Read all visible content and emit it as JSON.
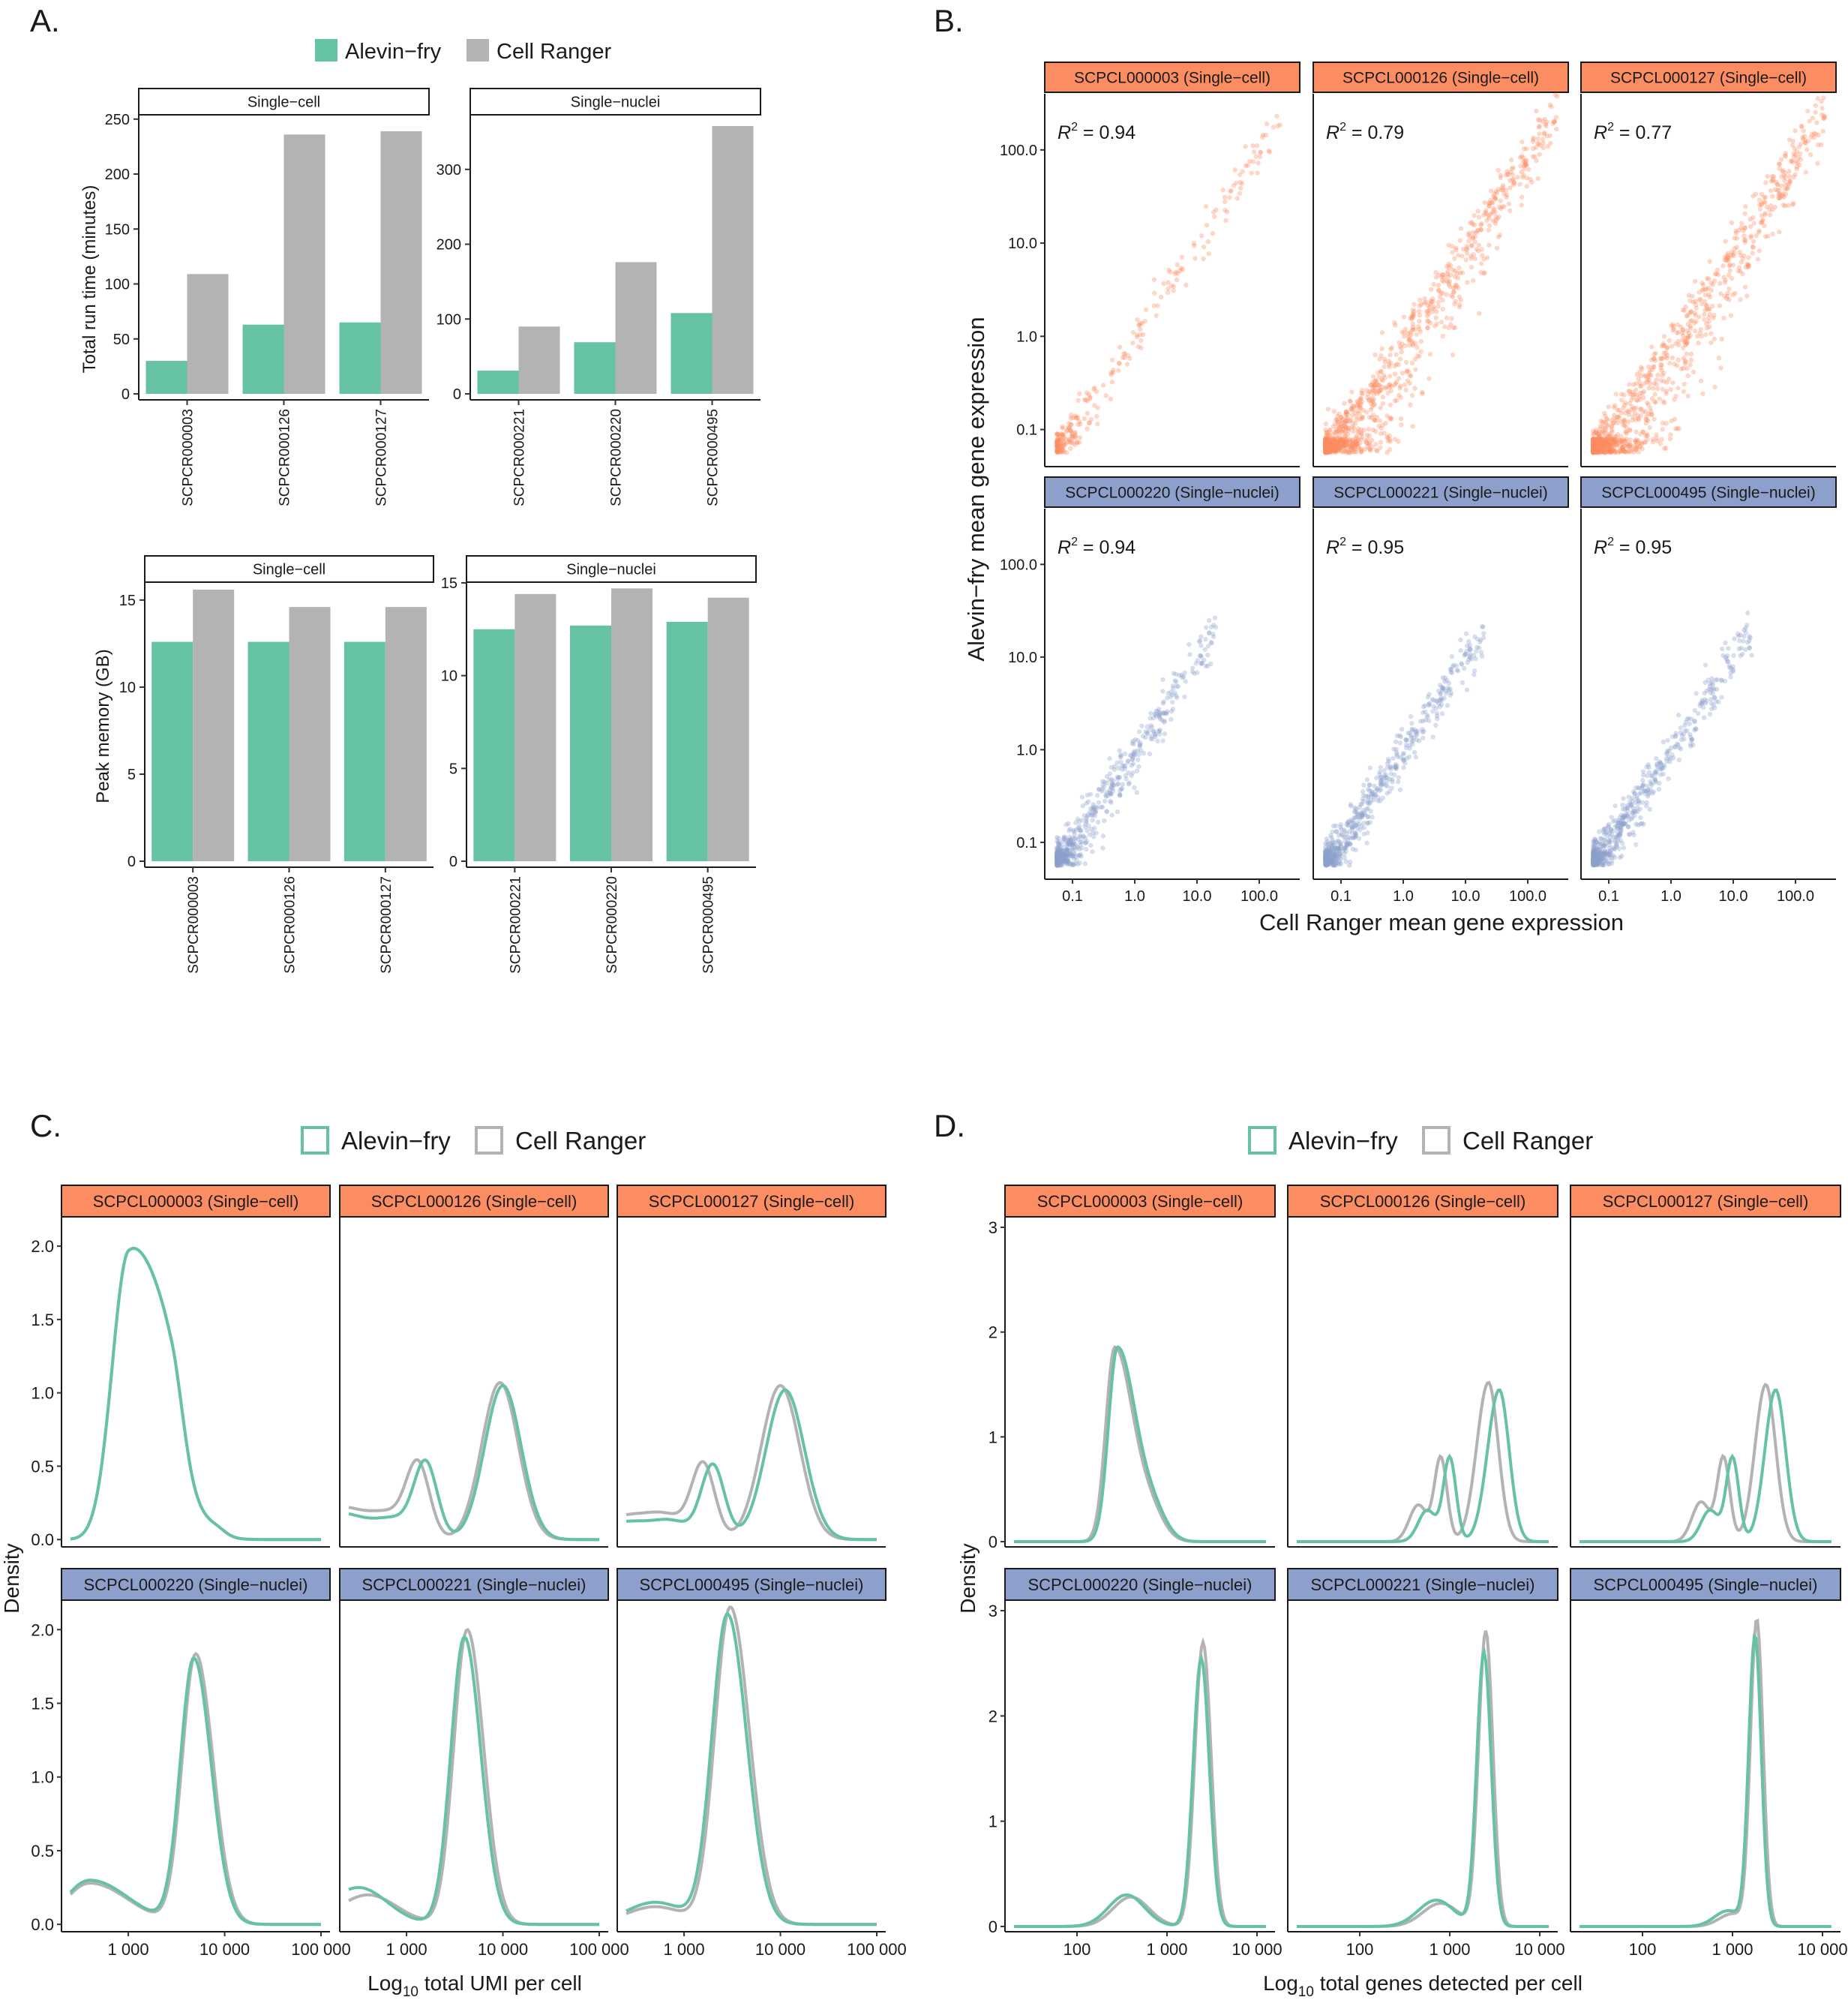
{
  "colors": {
    "alevin": "#66c2a5",
    "cellranger": "#b3b3b3",
    "single_cell_strip": "#fc8d62",
    "single_nuclei_strip": "#8da0cb",
    "scatter_sc": "#fc8d62",
    "scatter_sn": "#8da0cb"
  },
  "panels": {
    "A": {
      "label": "A."
    },
    "B": {
      "label": "B."
    },
    "C": {
      "label": "C."
    },
    "D": {
      "label": "D."
    }
  },
  "chart_data": [
    {
      "id": "A_runtime",
      "type": "bar",
      "panel": "A.",
      "legend": [
        "Alevin−fry",
        "Cell Ranger"
      ],
      "ylabel": "Total run time (minutes)",
      "facets": [
        {
          "strip": "Single−cell",
          "categories": [
            "SCPCR000003",
            "SCPCR000126",
            "SCPCR000127"
          ],
          "series": [
            {
              "name": "Alevin−fry",
              "values": [
                30,
                63,
                65
              ]
            },
            {
              "name": "Cell Ranger",
              "values": [
                109,
                236,
                239
              ]
            }
          ],
          "ylim": [
            0,
            256
          ],
          "yticks": [
            0,
            50,
            100,
            150,
            200,
            250
          ]
        },
        {
          "strip": "Single−nuclei",
          "categories": [
            "SCPCR000221",
            "SCPCR000220",
            "SCPCR000495"
          ],
          "series": [
            {
              "name": "Alevin−fry",
              "values": [
                31,
                69,
                108
              ]
            },
            {
              "name": "Cell Ranger",
              "values": [
                90,
                176,
                358
              ]
            }
          ],
          "ylim": [
            0,
            376
          ],
          "yticks": [
            0,
            100,
            200,
            300
          ]
        }
      ]
    },
    {
      "id": "A_memory",
      "type": "bar",
      "panel": "A.",
      "ylabel": "Peak memory (GB)",
      "facets": [
        {
          "strip": "Single−cell",
          "categories": [
            "SCPCR000003",
            "SCPCR000126",
            "SCPCR000127"
          ],
          "series": [
            {
              "name": "Alevin−fry",
              "values": [
                12.6,
                12.6,
                12.6
              ]
            },
            {
              "name": "Cell Ranger",
              "values": [
                15.6,
                14.6,
                14.6
              ]
            }
          ],
          "ylim": [
            0,
            16.2
          ],
          "yticks": [
            0,
            5,
            10,
            15
          ]
        },
        {
          "strip": "Single−nuclei",
          "categories": [
            "SCPCR000221",
            "SCPCR000220",
            "SCPCR000495"
          ],
          "series": [
            {
              "name": "Alevin−fry",
              "values": [
                12.5,
                12.7,
                12.9
              ]
            },
            {
              "name": "Cell Ranger",
              "values": [
                14.4,
                14.7,
                14.2
              ]
            }
          ],
          "ylim": [
            0,
            15.2
          ],
          "yticks": [
            0,
            5,
            10,
            15
          ]
        }
      ]
    },
    {
      "id": "B_scatter",
      "type": "scatter",
      "panel": "B.",
      "xlabel": "Cell Ranger mean gene expression",
      "ylabel": "Alevin−fry mean gene expression",
      "scale": "log10",
      "axis_range": [
        0.04,
        400
      ],
      "ticks": [
        "0.1",
        "1.0",
        "10.0",
        "100.0"
      ],
      "tick_values": [
        0.1,
        1,
        10,
        100
      ],
      "facets": [
        {
          "strip": "SCPCL000003 (Single−cell)",
          "r2_label": "R",
          "r2_sup": "2",
          "r2_value": " = 0.94",
          "r2": 0.94,
          "group": "sc",
          "max": 250,
          "spread": 0.35,
          "skew": 0.15
        },
        {
          "strip": "SCPCL000126 (Single−cell)",
          "r2_label": "R",
          "r2_sup": "2",
          "r2_value": " = 0.79",
          "r2": 0.79,
          "group": "sc",
          "max": 300,
          "spread": 0.75,
          "skew": 0.55
        },
        {
          "strip": "SCPCL000127 (Single−cell)",
          "r2_label": "R",
          "r2_sup": "2",
          "r2_value": " = 0.77",
          "r2": 0.77,
          "group": "sc",
          "max": 300,
          "spread": 0.8,
          "skew": 0.6
        },
        {
          "strip": "SCPCL000220 (Single−nuclei)",
          "r2_label": "R",
          "r2_sup": "2",
          "r2_value": " = 0.94",
          "r2": 0.94,
          "group": "sn",
          "max": 20,
          "spread": 0.45,
          "skew": 0.2
        },
        {
          "strip": "SCPCL000221 (Single−nuclei)",
          "r2_label": "R",
          "r2_sup": "2",
          "r2_value": " = 0.95",
          "r2": 0.95,
          "group": "sn",
          "max": 20,
          "spread": 0.35,
          "skew": 0.15
        },
        {
          "strip": "SCPCL000495 (Single−nuclei)",
          "r2_label": "R",
          "r2_sup": "2",
          "r2_value": " = 0.95",
          "r2": 0.95,
          "group": "sn",
          "max": 20,
          "spread": 0.35,
          "skew": 0.15
        }
      ]
    },
    {
      "id": "C_umi_density",
      "type": "line",
      "panel": "C.",
      "legend": [
        "Alevin−fry",
        "Cell Ranger"
      ],
      "xlabel_main": "Log",
      "xlabel_sub": "10",
      "xlabel_rest": " total UMI per cell",
      "ylabel": "Density",
      "x_log_range": [
        2.4,
        5.0
      ],
      "xticks": [
        {
          "value": 3,
          "label": "1 000"
        },
        {
          "value": 4,
          "label": "10 000"
        },
        {
          "value": 5,
          "label": "100 000"
        }
      ],
      "ylim": [
        -0.05,
        2.2
      ],
      "yticks": [
        "0.0",
        "0.5",
        "1.0",
        "1.5",
        "2.0"
      ],
      "ytick_values": [
        0,
        0.5,
        1.0,
        1.5,
        2.0
      ],
      "facets": [
        {
          "strip": "SCPCL000003 (Single−cell)",
          "group": "sc",
          "alevin": [
            [
              0.0,
              2.45,
              0.03,
              0.5
            ],
            [
              1.9,
              3.0,
              0.17,
              0.34
            ],
            [
              0.55,
              3.45,
              0.22,
              0.12
            ],
            [
              0.05,
              3.9,
              0.25,
              0.1
            ]
          ],
          "cellranger": [
            [
              0.0,
              2.45,
              0.03,
              0.5
            ],
            [
              1.9,
              3.0,
              0.17,
              0.34
            ],
            [
              0.55,
              3.45,
              0.22,
              0.12
            ],
            [
              0.05,
              3.9,
              0.25,
              0.1
            ]
          ]
        },
        {
          "strip": "SCPCL000126 (Single−cell)",
          "group": "sc",
          "alevin": [
            [
              0.18,
              2.3,
              0.22,
              0.3
            ],
            [
              0.5,
              3.2,
              0.12,
              0.12
            ],
            [
              1.05,
              4.0,
              0.19,
              0.19
            ],
            [
              0.12,
              2.9,
              0.2,
              0.2
            ]
          ],
          "cellranger": [
            [
              0.22,
              2.3,
              0.22,
              0.3
            ],
            [
              0.48,
              3.12,
              0.12,
              0.12
            ],
            [
              1.07,
              3.97,
              0.19,
              0.19
            ],
            [
              0.14,
              2.85,
              0.2,
              0.2
            ]
          ]
        },
        {
          "strip": "SCPCL000127 (Single−cell)",
          "group": "sc",
          "alevin": [
            [
              0.12,
              2.4,
              0.2,
              0.3
            ],
            [
              0.5,
              3.3,
              0.12,
              0.12
            ],
            [
              1.02,
              4.05,
              0.2,
              0.2
            ],
            [
              0.1,
              2.9,
              0.2,
              0.2
            ]
          ],
          "cellranger": [
            [
              0.16,
              2.4,
              0.2,
              0.3
            ],
            [
              0.5,
              3.2,
              0.12,
              0.12
            ],
            [
              1.05,
              4.0,
              0.2,
              0.2
            ],
            [
              0.12,
              2.85,
              0.2,
              0.2
            ]
          ]
        },
        {
          "strip": "SCPCL000220 (Single−nuclei)",
          "group": "sn",
          "alevin": [
            [
              0.3,
              2.6,
              0.25,
              0.4
            ],
            [
              1.8,
              3.68,
              0.14,
              0.18
            ]
          ],
          "cellranger": [
            [
              0.28,
              2.6,
              0.25,
              0.4
            ],
            [
              1.83,
              3.7,
              0.14,
              0.18
            ]
          ]
        },
        {
          "strip": "SCPCL000221 (Single−nuclei)",
          "group": "sn",
          "alevin": [
            [
              0.25,
              2.5,
              0.3,
              0.3
            ],
            [
              1.95,
              3.6,
              0.14,
              0.17
            ]
          ],
          "cellranger": [
            [
              0.2,
              2.6,
              0.3,
              0.3
            ],
            [
              2.0,
              3.63,
              0.14,
              0.17
            ]
          ]
        },
        {
          "strip": "SCPCL000495 (Single−nuclei)",
          "group": "sn",
          "alevin": [
            [
              0.15,
              2.7,
              0.3,
              0.3
            ],
            [
              2.1,
              3.45,
              0.16,
              0.2
            ]
          ],
          "cellranger": [
            [
              0.12,
              2.7,
              0.3,
              0.3
            ],
            [
              2.15,
              3.48,
              0.16,
              0.2
            ]
          ]
        }
      ]
    },
    {
      "id": "D_genes_density",
      "type": "line",
      "panel": "D.",
      "legend": [
        "Alevin−fry",
        "Cell Ranger"
      ],
      "xlabel_main": "Log",
      "xlabel_sub": "10",
      "xlabel_rest": " total genes detected per cell",
      "ylabel": "Density",
      "x_log_range": [
        1.3,
        4.1
      ],
      "xticks": [
        {
          "value": 2,
          "label": "100"
        },
        {
          "value": 3,
          "label": "1 000"
        },
        {
          "value": 4,
          "label": "10 000"
        }
      ],
      "ylim": [
        -0.05,
        3.1
      ],
      "yticks": [
        "0",
        "1",
        "2",
        "3"
      ],
      "ytick_values": [
        0,
        1,
        2,
        3
      ],
      "facets": [
        {
          "strip": "SCPCL000003 (Single−cell)",
          "group": "sc",
          "alevin": [
            [
              1.85,
              2.45,
              0.1,
              0.2
            ],
            [
              0.25,
              2.85,
              0.15,
              0.15
            ]
          ],
          "cellranger": [
            [
              1.85,
              2.42,
              0.1,
              0.2
            ],
            [
              0.25,
              2.82,
              0.15,
              0.15
            ]
          ]
        },
        {
          "strip": "SCPCL000126 (Single−cell)",
          "group": "sc",
          "alevin": [
            [
              0.8,
              3.0,
              0.07,
              0.07
            ],
            [
              1.45,
              3.55,
              0.13,
              0.11
            ],
            [
              0.3,
              2.75,
              0.1,
              0.1
            ]
          ],
          "cellranger": [
            [
              0.8,
              2.9,
              0.07,
              0.07
            ],
            [
              1.52,
              3.43,
              0.13,
              0.11
            ],
            [
              0.35,
              2.65,
              0.1,
              0.1
            ]
          ]
        },
        {
          "strip": "SCPCL000127 (Single−cell)",
          "group": "sc",
          "alevin": [
            [
              0.8,
              3.0,
              0.07,
              0.07
            ],
            [
              1.45,
              3.48,
              0.12,
              0.11
            ],
            [
              0.3,
              2.75,
              0.1,
              0.1
            ]
          ],
          "cellranger": [
            [
              0.8,
              2.9,
              0.07,
              0.07
            ],
            [
              1.5,
              3.37,
              0.12,
              0.11
            ],
            [
              0.38,
              2.65,
              0.1,
              0.1
            ]
          ]
        },
        {
          "strip": "SCPCL000220 (Single−nuclei)",
          "group": "sn",
          "alevin": [
            [
              0.3,
              2.55,
              0.2,
              0.2
            ],
            [
              2.55,
              3.38,
              0.09,
              0.09
            ]
          ],
          "cellranger": [
            [
              0.28,
              2.6,
              0.2,
              0.2
            ],
            [
              2.7,
              3.4,
              0.09,
              0.09
            ]
          ]
        },
        {
          "strip": "SCPCL000221 (Single−nuclei)",
          "group": "sn",
          "alevin": [
            [
              0.25,
              2.85,
              0.2,
              0.2
            ],
            [
              2.6,
              3.38,
              0.08,
              0.08
            ]
          ],
          "cellranger": [
            [
              0.22,
              2.9,
              0.2,
              0.2
            ],
            [
              2.8,
              3.4,
              0.08,
              0.08
            ]
          ]
        },
        {
          "strip": "SCPCL000495 (Single−nuclei)",
          "group": "sn",
          "alevin": [
            [
              0.15,
              2.95,
              0.15,
              0.15
            ],
            [
              2.75,
              3.25,
              0.07,
              0.07
            ]
          ],
          "cellranger": [
            [
              0.12,
              3.0,
              0.15,
              0.15
            ],
            [
              2.9,
              3.27,
              0.07,
              0.07
            ]
          ]
        }
      ]
    }
  ]
}
